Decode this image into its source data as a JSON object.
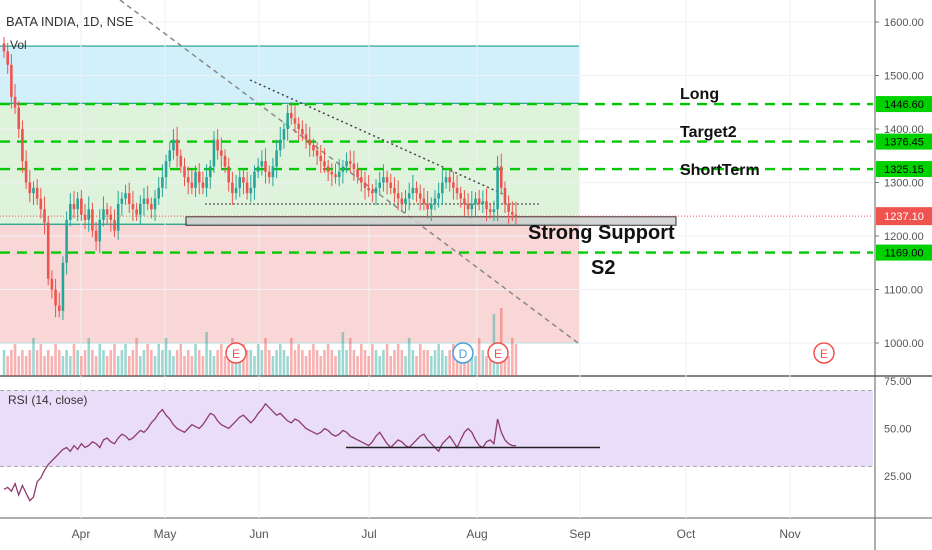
{
  "header": {
    "symbol_line": "BATA INDIA, 1D, NSE",
    "vol_label": "Vol"
  },
  "rsi_panel": {
    "label": "RSI (14, close)"
  },
  "annotations": {
    "long": "Long",
    "target2": "Target2",
    "short_term": "ShortTerm",
    "support": "Strong Support",
    "s2": "S2"
  },
  "earnings_markers": [
    "E",
    "D",
    "E",
    "E"
  ],
  "colors": {
    "up": "#26a69a",
    "down": "#ef5350",
    "level_line": "#00c800",
    "last_price_badge": "#ef5350",
    "rsi_line": "#8e3a6e",
    "rsi_band": "#e9ddfa"
  },
  "chart_data": [
    {
      "type": "candlestick",
      "title": "BATA INDIA, 1D, NSE",
      "x_ticks": [
        "Apr",
        "May",
        "Jun",
        "Jul",
        "Aug",
        "Sep",
        "Oct",
        "Nov"
      ],
      "y_ticks": [
        1000.0,
        1100.0,
        1200.0,
        1300.0,
        1400.0,
        1500.0,
        1600.0
      ],
      "y_tick_labels": [
        "1000.00",
        "1100.00",
        "1200.00",
        "1300.00",
        "1400.00",
        "1500.00",
        "1600.00"
      ],
      "ylim": [
        975,
        1610
      ],
      "last_price": 1237.1,
      "last_price_label": "1237.10",
      "levels": [
        {
          "name": "Long",
          "value": 1446.6,
          "label": "1446.60"
        },
        {
          "name": "Target2",
          "value": 1376.45,
          "label": "1376.45"
        },
        {
          "name": "ShortTerm",
          "value": 1325.15,
          "label": "1325.15"
        },
        {
          "name": "S2",
          "value": 1169.0,
          "label": "1169.00"
        }
      ],
      "zones": [
        {
          "from": 1448,
          "to": 1555,
          "color": "#cdeefa"
        },
        {
          "from": 1222,
          "to": 1448,
          "color": "#dcf1d8"
        },
        {
          "from": 1000,
          "to": 1222,
          "color": "#fad3d3"
        }
      ],
      "support_box": {
        "from": 1220,
        "to": 1236
      },
      "series": [
        {
          "name": "price",
          "close": [
            1545,
            1520,
            1460,
            1440,
            1400,
            1340,
            1300,
            1280,
            1290,
            1270,
            1250,
            1225,
            1120,
            1100,
            1070,
            1060,
            1150,
            1230,
            1260,
            1250,
            1270,
            1240,
            1230,
            1250,
            1210,
            1190,
            1230,
            1250,
            1240,
            1230,
            1210,
            1260,
            1270,
            1280,
            1260,
            1250,
            1240,
            1260,
            1270,
            1260,
            1250,
            1270,
            1290,
            1310,
            1340,
            1360,
            1380,
            1350,
            1330,
            1310,
            1300,
            1290,
            1320,
            1300,
            1290,
            1310,
            1330,
            1380,
            1360,
            1350,
            1330,
            1300,
            1280,
            1290,
            1310,
            1300,
            1280,
            1290,
            1320,
            1330,
            1340,
            1320,
            1310,
            1330,
            1360,
            1380,
            1400,
            1430,
            1420,
            1410,
            1400,
            1390,
            1380,
            1370,
            1360,
            1350,
            1340,
            1330,
            1320,
            1315,
            1310,
            1320,
            1330,
            1340,
            1335,
            1325,
            1310,
            1300,
            1290,
            1285,
            1280,
            1290,
            1300,
            1310,
            1300,
            1290,
            1280,
            1270,
            1260,
            1270,
            1280,
            1290,
            1280,
            1270,
            1260,
            1250,
            1260,
            1270,
            1280,
            1300,
            1310,
            1300,
            1290,
            1280,
            1270,
            1260,
            1250,
            1260,
            1270,
            1260,
            1265,
            1250,
            1245,
            1250,
            1330,
            1290,
            1260,
            1245,
            1240,
            1237.1
          ]
        }
      ]
    },
    {
      "type": "bar",
      "title": "Vol",
      "series": [
        {
          "values": [
            3,
            2,
            3,
            4,
            2,
            3,
            2,
            3,
            5,
            3,
            4,
            2,
            3,
            2,
            4,
            3,
            2,
            3,
            2,
            4,
            3,
            2,
            3,
            5,
            3,
            2,
            4,
            3,
            2,
            3,
            4,
            2,
            3,
            4,
            2,
            3,
            5,
            2,
            3,
            4,
            3,
            2,
            4,
            3,
            5,
            3,
            2,
            3,
            4,
            2,
            3,
            2,
            4,
            3,
            2,
            6,
            3,
            2,
            3,
            4,
            2,
            3,
            5,
            3,
            2,
            4,
            3,
            3,
            2,
            4,
            3,
            5,
            3,
            2,
            3,
            4,
            3,
            2,
            5,
            3,
            4,
            3,
            2,
            3,
            4,
            3,
            2,
            3,
            4,
            3,
            2,
            3,
            6,
            3,
            5,
            3,
            2,
            4,
            3,
            2,
            4,
            3,
            2,
            3,
            4,
            2,
            3,
            4,
            3,
            2,
            5,
            3,
            2,
            4,
            3,
            3,
            2,
            3,
            4,
            3,
            2,
            3,
            4,
            3,
            2,
            3,
            4,
            3,
            2,
            5,
            3,
            2,
            3,
            9,
            4,
            10,
            3,
            2,
            5,
            4
          ]
        }
      ]
    },
    {
      "type": "line",
      "title": "RSI (14, close)",
      "y_ticks": [
        25.0,
        50.0,
        75.0
      ],
      "y_tick_labels": [
        "25.00",
        "50.00",
        "75.00"
      ],
      "ylim": [
        5,
        78
      ],
      "band": [
        30,
        70
      ],
      "support_line": 40,
      "series": [
        {
          "name": "RSI",
          "values": [
            18,
            19,
            17,
            21,
            15,
            20,
            16,
            12,
            14,
            22,
            24,
            28,
            31,
            33,
            35,
            37,
            39,
            40,
            38,
            41,
            39,
            42,
            40,
            41,
            43,
            42,
            40,
            44,
            45,
            43,
            42,
            45,
            47,
            46,
            44,
            45,
            47,
            49,
            48,
            50,
            53,
            55,
            58,
            60,
            57,
            55,
            52,
            50,
            49,
            48,
            50,
            52,
            51,
            50,
            52,
            55,
            58,
            57,
            54,
            52,
            51,
            50,
            52,
            54,
            56,
            57,
            55,
            53,
            55,
            58,
            60,
            63,
            61,
            59,
            57,
            58,
            56,
            54,
            53,
            55,
            54,
            52,
            50,
            49,
            48,
            47,
            48,
            50,
            49,
            47,
            46,
            47,
            49,
            48,
            46,
            45,
            44,
            43,
            42,
            41,
            43,
            46,
            48,
            45,
            42,
            40,
            42,
            44,
            43,
            41,
            40,
            42,
            44,
            46,
            47,
            44,
            42,
            40,
            38,
            42,
            44,
            46,
            43,
            40,
            44,
            48,
            50,
            48,
            44,
            41,
            40,
            43,
            44,
            42,
            55,
            48,
            44,
            42,
            41,
            41
          ]
        }
      ]
    }
  ]
}
